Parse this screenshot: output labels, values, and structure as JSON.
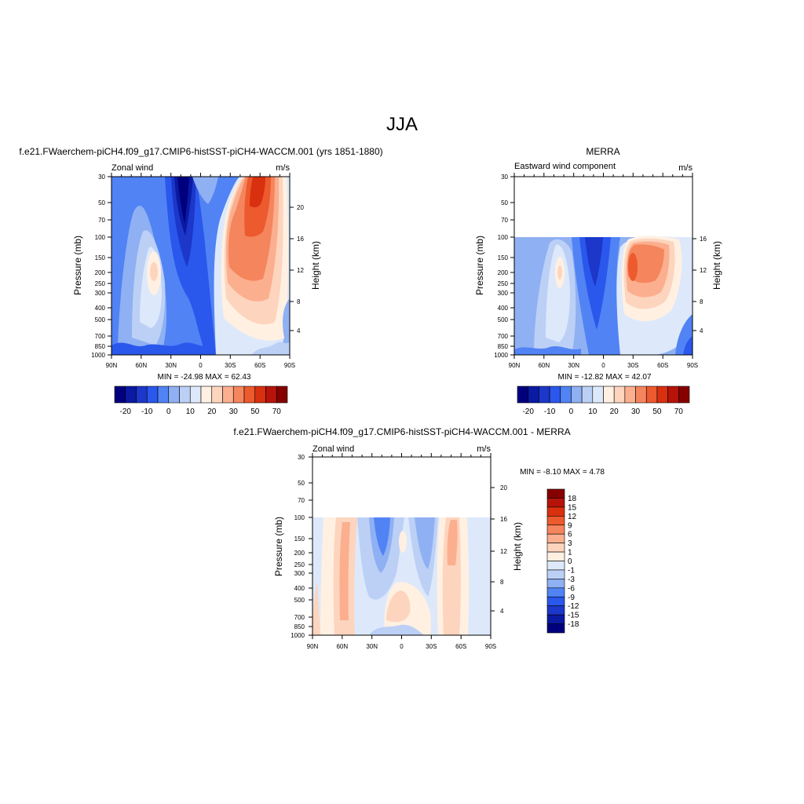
{
  "figure": {
    "title": "JJA"
  },
  "chart_data": [
    {
      "type": "heatmap",
      "id": "model",
      "title": "f.e21.FWaerchem-piCH4.f09_g17.CMIP6-histSST-piCH4-WACCM.001 (yrs 1851-1880)",
      "left_label": "Zonal wind",
      "right_label": "m/s",
      "ylabel": "Pressure (mb)",
      "ylabel_right": "Height (km)",
      "x_ticks": [
        "90N",
        "60N",
        "30N",
        "0",
        "30S",
        "60S",
        "90S"
      ],
      "y_ticks": [
        "30",
        "50",
        "70",
        "100",
        "150",
        "200",
        "250",
        "300",
        "400",
        "500",
        "700",
        "850",
        "1000"
      ],
      "height_ticks": [
        "20",
        "16",
        "12",
        "8",
        "4"
      ],
      "stats": "MIN = -24.98  MAX =  62.43",
      "data_top_mb": 30,
      "colorbar": {
        "orientation": "horizontal",
        "labels": [
          "-20",
          "-10",
          "0",
          "10",
          "20",
          "30",
          "50",
          "70"
        ],
        "colors": [
          "#00007f",
          "#0a1aa3",
          "#1c37c9",
          "#2a57ec",
          "#5183f5",
          "#8fb0f2",
          "#bcd0f6",
          "#dde9fb",
          "#fff0e2",
          "#fdd4bd",
          "#fbaf8f",
          "#f5855d",
          "#ec5a2e",
          "#d9300f",
          "#b6140b",
          "#870000"
        ]
      }
    },
    {
      "type": "heatmap",
      "id": "merra",
      "title": "MERRA",
      "left_label": "Eastward wind component",
      "right_label": "m/s",
      "ylabel": "Pressure (mb)",
      "ylabel_right": "Height (km)",
      "x_ticks": [
        "90N",
        "60N",
        "30N",
        "0",
        "30S",
        "60S",
        "90S"
      ],
      "y_ticks": [
        "30",
        "50",
        "70",
        "100",
        "150",
        "200",
        "250",
        "300",
        "400",
        "500",
        "700",
        "850",
        "1000"
      ],
      "height_ticks": [
        "16",
        "12",
        "8",
        "4"
      ],
      "stats": "MIN = -12.82  MAX =  42.07",
      "data_top_mb": 100,
      "colorbar": {
        "orientation": "horizontal",
        "labels": [
          "-20",
          "-10",
          "0",
          "10",
          "20",
          "30",
          "50",
          "70"
        ],
        "colors": [
          "#00007f",
          "#0a1aa3",
          "#1c37c9",
          "#2a57ec",
          "#5183f5",
          "#8fb0f2",
          "#bcd0f6",
          "#dde9fb",
          "#fff0e2",
          "#fdd4bd",
          "#fbaf8f",
          "#f5855d",
          "#ec5a2e",
          "#d9300f",
          "#b6140b",
          "#870000"
        ]
      }
    },
    {
      "type": "heatmap",
      "id": "diff",
      "title": "f.e21.FWaerchem-piCH4.f09_g17.CMIP6-histSST-piCH4-WACCM.001 - MERRA",
      "left_label": "Zonal wind",
      "right_label": "m/s",
      "ylabel": "Pressure (mb)",
      "ylabel_right": "Height (km)",
      "x_ticks": [
        "90N",
        "60N",
        "30N",
        "0",
        "30S",
        "60S",
        "90S"
      ],
      "y_ticks": [
        "30",
        "50",
        "70",
        "100",
        "150",
        "200",
        "250",
        "300",
        "400",
        "500",
        "700",
        "850",
        "1000"
      ],
      "height_ticks": [
        "20",
        "16",
        "12",
        "8",
        "4"
      ],
      "stats": "MIN =  -8.10  MAX =   4.78",
      "data_top_mb": 100,
      "colorbar": {
        "orientation": "vertical",
        "labels": [
          "18",
          "15",
          "12",
          "9",
          "6",
          "3",
          "1",
          "0",
          "-1",
          "-3",
          "-6",
          "-9",
          "-12",
          "-15",
          "-18"
        ],
        "colors": [
          "#870000",
          "#b6140b",
          "#d9300f",
          "#ec5a2e",
          "#f5855d",
          "#fbaf8f",
          "#fdd4bd",
          "#fff0e2",
          "#dde9fb",
          "#bcd0f6",
          "#8fb0f2",
          "#5183f5",
          "#2a57ec",
          "#1c37c9",
          "#0a1aa3",
          "#00007f"
        ]
      }
    }
  ]
}
